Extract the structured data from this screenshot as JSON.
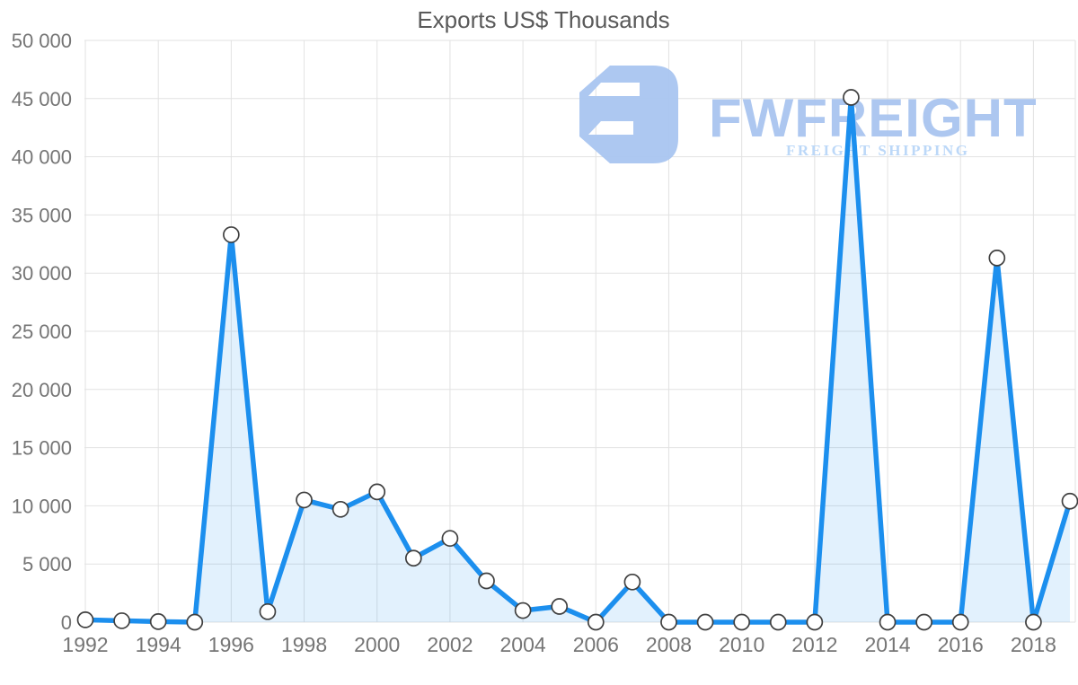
{
  "title": "Exports US$ Thousands",
  "watermark": {
    "brand": "FWFREIGHT",
    "tagline": "FREIGHT SHIPPING",
    "icon": "fwfreight-logo-icon",
    "brand_color": "#a9c5f0",
    "tagline_color": "#b9d6f8",
    "icon_color": "#a9c5f0"
  },
  "chart_data": {
    "type": "area",
    "title": "Exports US$ Thousands",
    "xlabel": "",
    "ylabel": "",
    "x": [
      1992,
      1993,
      1994,
      1995,
      1996,
      1997,
      1998,
      1999,
      2000,
      2001,
      2002,
      2003,
      2004,
      2005,
      2006,
      2007,
      2008,
      2009,
      2010,
      2011,
      2012,
      2013,
      2014,
      2015,
      2016,
      2017,
      2018,
      2019
    ],
    "series": [
      {
        "name": "Exports US$ Thousands",
        "values": [
          200,
          120,
          50,
          0,
          33300,
          900,
          10500,
          9700,
          11200,
          5500,
          7200,
          3550,
          1000,
          1350,
          0,
          3450,
          0,
          0,
          0,
          0,
          0,
          45100,
          0,
          0,
          0,
          31300,
          0,
          10400
        ]
      }
    ],
    "ylim": [
      0,
      50000
    ],
    "ytick_step": 5000,
    "ytick_labels": [
      "0",
      "5 000",
      "10 000",
      "15 000",
      "20 000",
      "25 000",
      "30 000",
      "35 000",
      "40 000",
      "45 000",
      "50 000"
    ],
    "xtick_labels": [
      "1992",
      "1994",
      "1996",
      "1998",
      "2000",
      "2002",
      "2004",
      "2006",
      "2008",
      "2010",
      "2012",
      "2014",
      "2016",
      "2018"
    ],
    "grid": true,
    "legend": "none",
    "line_color": "#1c8fee",
    "fill_color": "rgba(28,143,238,0.13)",
    "marker_fill": "#ffffff",
    "marker_stroke": "#404040",
    "grid_color": "#e2e2e2",
    "axis_label_color": "#757575",
    "title_color": "#5a5a5a"
  }
}
